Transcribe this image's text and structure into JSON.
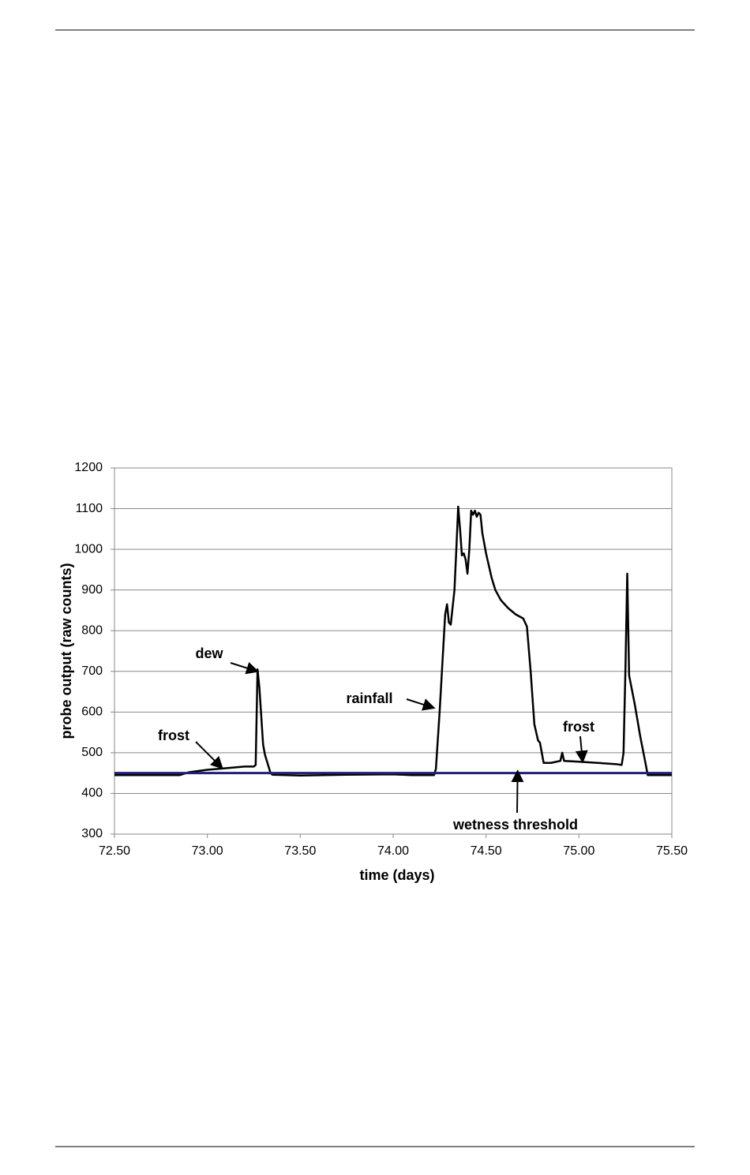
{
  "chart_data": {
    "type": "line",
    "xlabel": "time (days)",
    "ylabel": "probe output (raw counts)",
    "xlim": [
      72.5,
      75.5
    ],
    "xticks": [
      {
        "value": 72.5,
        "label": "72.50"
      },
      {
        "value": 73,
        "label": "73.00"
      },
      {
        "value": 73.5,
        "label": "73.50"
      },
      {
        "value": 74,
        "label": "74.00"
      },
      {
        "value": 74.5,
        "label": "74.50"
      },
      {
        "value": 75,
        "label": "75.00"
      },
      {
        "value": 75.5,
        "label": "75.50"
      }
    ],
    "ylim": [
      300,
      1200
    ],
    "yticks": [
      300,
      400,
      500,
      600,
      700,
      800,
      900,
      1000,
      1100,
      1200
    ],
    "grid": true,
    "series": [
      {
        "color": "#000000",
        "x": [
          72.5,
          72.85,
          72.9,
          73.0,
          73.1,
          73.2,
          73.25,
          73.26,
          73.27,
          73.28,
          73.3,
          73.31,
          73.34,
          73.35,
          73.5,
          73.75,
          74.0,
          74.1,
          74.22,
          74.23,
          74.25,
          74.27,
          74.28,
          74.29,
          74.3,
          74.31,
          74.33,
          74.34,
          74.35,
          74.36,
          74.37,
          74.38,
          74.39,
          74.4,
          74.41,
          74.42,
          74.43,
          74.44,
          74.45,
          74.46,
          74.47,
          74.48,
          74.5,
          74.53,
          74.55,
          74.58,
          74.62,
          74.66,
          74.7,
          74.72,
          74.74,
          74.76,
          74.78,
          74.79,
          74.8,
          74.81,
          74.85,
          74.9,
          74.91,
          74.92,
          75.0,
          75.1,
          75.2,
          75.23,
          75.24,
          75.25,
          75.26,
          75.27,
          75.3,
          75.33,
          75.36,
          75.37,
          75.5
        ],
        "values": [
          445,
          445,
          452,
          458,
          462,
          466,
          466,
          470,
          705,
          660,
          520,
          495,
          450,
          446,
          444,
          446,
          447,
          445,
          445,
          460,
          600,
          760,
          840,
          865,
          820,
          815,
          900,
          1000,
          1105,
          1050,
          985,
          990,
          975,
          940,
          1000,
          1095,
          1085,
          1095,
          1080,
          1090,
          1085,
          1040,
          990,
          930,
          900,
          875,
          855,
          840,
          830,
          810,
          700,
          570,
          530,
          525,
          500,
          475,
          475,
          480,
          500,
          480,
          478,
          475,
          472,
          470,
          500,
          700,
          940,
          690,
          620,
          540,
          470,
          445,
          445
        ]
      },
      {
        "color": "#1f1f7a",
        "x": [
          72.5,
          75.5
        ],
        "values": [
          450,
          450
        ]
      }
    ],
    "annotations": [
      {
        "text": "dew",
        "x": 73.27,
        "y": 700
      },
      {
        "text": "frost",
        "x": 73.08,
        "y": 462
      },
      {
        "text": "rainfall",
        "x": 74.22,
        "y": 610
      },
      {
        "text": "frost",
        "x": 75.02,
        "y": 478
      },
      {
        "text": "wetness threshold",
        "x": 74.67,
        "y": 455
      }
    ]
  }
}
